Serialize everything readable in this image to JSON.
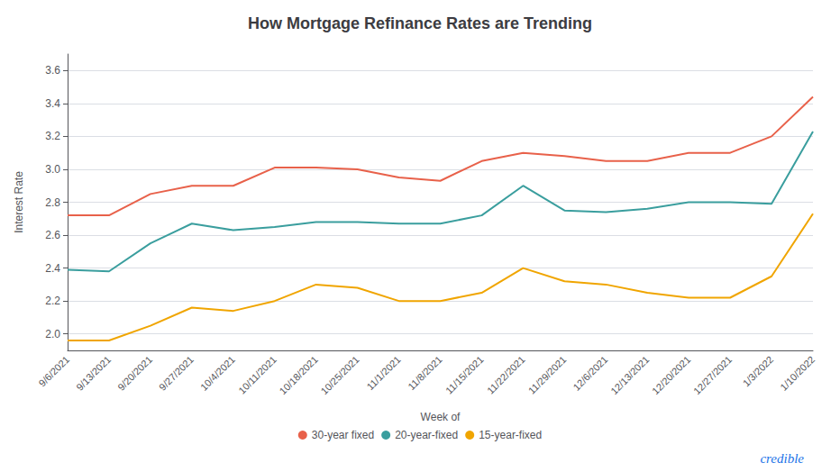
{
  "chart_data": {
    "type": "line",
    "title": "How Mortgage Refinance Rates are Trending",
    "xlabel": "Week of",
    "ylabel": "Interest Rate",
    "categories": [
      "9/6/2021",
      "9/13/2021",
      "9/20/2021",
      "9/27/2021",
      "10/4/2021",
      "10/11/2021",
      "10/18/2021",
      "10/25/2021",
      "11/1/2021",
      "11/8/2021",
      "11/15/2021",
      "11/22/2021",
      "11/29/2021",
      "12/6/2021",
      "12/13/2021",
      "12/20/2021",
      "12/27/2021",
      "1/3/2022",
      "1/10/2022"
    ],
    "series": [
      {
        "name": "30-year fixed",
        "color": "#e8614a",
        "values": [
          2.72,
          2.72,
          2.85,
          2.9,
          2.9,
          3.01,
          3.01,
          3.0,
          2.95,
          2.93,
          3.05,
          3.1,
          3.08,
          3.05,
          3.05,
          3.1,
          3.1,
          3.2,
          3.44
        ]
      },
      {
        "name": "20-year-fixed",
        "color": "#3a9e9e",
        "values": [
          2.39,
          2.38,
          2.55,
          2.67,
          2.63,
          2.65,
          2.68,
          2.68,
          2.67,
          2.67,
          2.72,
          2.9,
          2.75,
          2.74,
          2.76,
          2.8,
          2.8,
          2.79,
          3.23
        ]
      },
      {
        "name": "15-year-fixed",
        "color": "#f0a500",
        "values": [
          1.96,
          1.96,
          2.05,
          2.16,
          2.14,
          2.2,
          2.3,
          2.28,
          2.2,
          2.2,
          2.25,
          2.4,
          2.32,
          2.3,
          2.25,
          2.22,
          2.22,
          2.35,
          2.73
        ]
      }
    ],
    "ylim": [
      1.9,
      3.7
    ],
    "yticks": [
      {
        "value": 2.0,
        "label": "2.0"
      },
      2.2,
      2.4,
      2.6,
      2.8,
      {
        "value": 3.0,
        "label": "3.0"
      },
      3.2,
      3.4,
      3.6
    ],
    "grid": true,
    "legend": "bottom",
    "annotations": [
      {
        "text": "credible",
        "color": "#1a73e8"
      }
    ]
  }
}
